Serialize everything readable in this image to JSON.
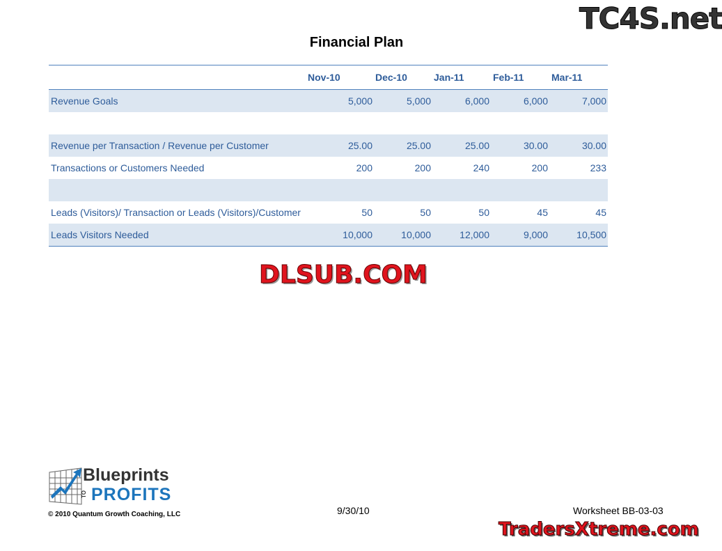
{
  "title": "Financial Plan",
  "columns": [
    "Nov-10",
    "Dec-10",
    "Jan-11",
    "Feb-11",
    "Mar-11"
  ],
  "rows": [
    {
      "label": "Revenue Goals",
      "values": [
        "5,000",
        "5,000",
        "6,000",
        "6,000",
        "7,000"
      ],
      "shade": true
    },
    {
      "label": "",
      "values": [
        "",
        "",
        "",
        "",
        ""
      ],
      "shade": false
    },
    {
      "label": "Revenue per Transaction / Revenue per Customer",
      "values": [
        "25.00",
        "25.00",
        "25.00",
        "30.00",
        "30.00"
      ],
      "shade": true
    },
    {
      "label": "Transactions or Customers Needed",
      "values": [
        "200",
        "200",
        "240",
        "200",
        "233"
      ],
      "shade": false
    },
    {
      "label": "",
      "values": [
        "",
        "",
        "",
        "",
        ""
      ],
      "shade": true
    },
    {
      "label": "Leads (Visitors)/ Transaction or Leads (Visitors)/Customer",
      "values": [
        "50",
        "50",
        "50",
        "45",
        "45"
      ],
      "shade": false
    },
    {
      "label": "Leads Visitors Needed",
      "values": [
        "10,000",
        "10,000",
        "12,000",
        "9,000",
        "10,500"
      ],
      "shade": true
    }
  ],
  "footer": {
    "date": "9/30/10",
    "worksheet": "Worksheet BB-03-03",
    "copyright": "© 2010 Quantum Growth Coaching, LLC",
    "logo_top": "Blueprints",
    "logo_to": "TO",
    "logo_bottom": "PROFITS"
  },
  "watermarks": {
    "top": "TC4S.net",
    "middle": "DLSUB.COM",
    "bottom": "TradersXtreme.com"
  },
  "colors": {
    "accent": "#2e5c9a",
    "shade": "#dce6f1",
    "rule": "#4f81bd"
  }
}
